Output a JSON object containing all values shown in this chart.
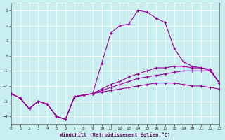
{
  "xlabel": "Windchill (Refroidissement éolien,°C)",
  "background_color": "#c8eef0",
  "line_color": "#990099",
  "grid_color": "#ffffff",
  "ylim": [
    -4.5,
    3.5
  ],
  "xlim": [
    0,
    23
  ],
  "yticks": [
    -4,
    -3,
    -2,
    -1,
    0,
    1,
    2,
    3
  ],
  "xticks": [
    0,
    1,
    2,
    3,
    4,
    5,
    6,
    7,
    8,
    9,
    10,
    11,
    12,
    13,
    14,
    15,
    16,
    17,
    18,
    19,
    20,
    21,
    22,
    23
  ],
  "series": [
    {
      "x": [
        0,
        1,
        2,
        3,
        4,
        5,
        6,
        7,
        8,
        9,
        10,
        11,
        12,
        13,
        14,
        15,
        16,
        17,
        18,
        19,
        20,
        21,
        22,
        23
      ],
      "y": [
        -2.5,
        -2.8,
        -3.5,
        -3.0,
        -3.2,
        -4.0,
        -4.2,
        -2.7,
        -2.6,
        -2.5,
        -2.4,
        -2.3,
        -2.2,
        -2.1,
        -2.0,
        -1.9,
        -1.8,
        -1.8,
        -1.8,
        -1.9,
        -2.0,
        -2.0,
        -2.1,
        -2.2
      ]
    },
    {
      "x": [
        0,
        1,
        2,
        3,
        4,
        5,
        6,
        7,
        8,
        9,
        10,
        11,
        12,
        13,
        14,
        15,
        16,
        17,
        18,
        19,
        20,
        21,
        22,
        23
      ],
      "y": [
        -2.5,
        -2.8,
        -3.5,
        -3.0,
        -3.2,
        -4.0,
        -4.2,
        -2.7,
        -2.6,
        -2.5,
        -2.3,
        -2.1,
        -1.9,
        -1.7,
        -1.5,
        -1.4,
        -1.3,
        -1.2,
        -1.1,
        -1.0,
        -1.0,
        -1.0,
        -1.0,
        -1.8
      ]
    },
    {
      "x": [
        0,
        1,
        2,
        3,
        4,
        5,
        6,
        7,
        8,
        9,
        10,
        11,
        12,
        13,
        14,
        15,
        16,
        17,
        18,
        19,
        20,
        21,
        22,
        23
      ],
      "y": [
        -2.5,
        -2.8,
        -3.5,
        -3.0,
        -3.2,
        -4.0,
        -4.2,
        -2.7,
        -2.6,
        -2.5,
        -2.2,
        -1.9,
        -1.7,
        -1.4,
        -1.2,
        -1.0,
        -0.8,
        -0.8,
        -0.7,
        -0.7,
        -0.8,
        -0.8,
        -0.9,
        -1.8
      ]
    },
    {
      "x": [
        0,
        1,
        2,
        3,
        4,
        5,
        6,
        7,
        8,
        9,
        10,
        11,
        12,
        13,
        14,
        15,
        16,
        17,
        18,
        19,
        20,
        21,
        22,
        23
      ],
      "y": [
        -2.5,
        -2.8,
        -3.5,
        -3.0,
        -3.2,
        -4.0,
        -4.2,
        -2.7,
        -2.6,
        -2.5,
        -0.5,
        1.5,
        2.0,
        2.1,
        3.0,
        2.9,
        2.5,
        2.2,
        0.5,
        -0.4,
        -0.7,
        -0.8,
        -1.0,
        -1.8
      ]
    }
  ]
}
